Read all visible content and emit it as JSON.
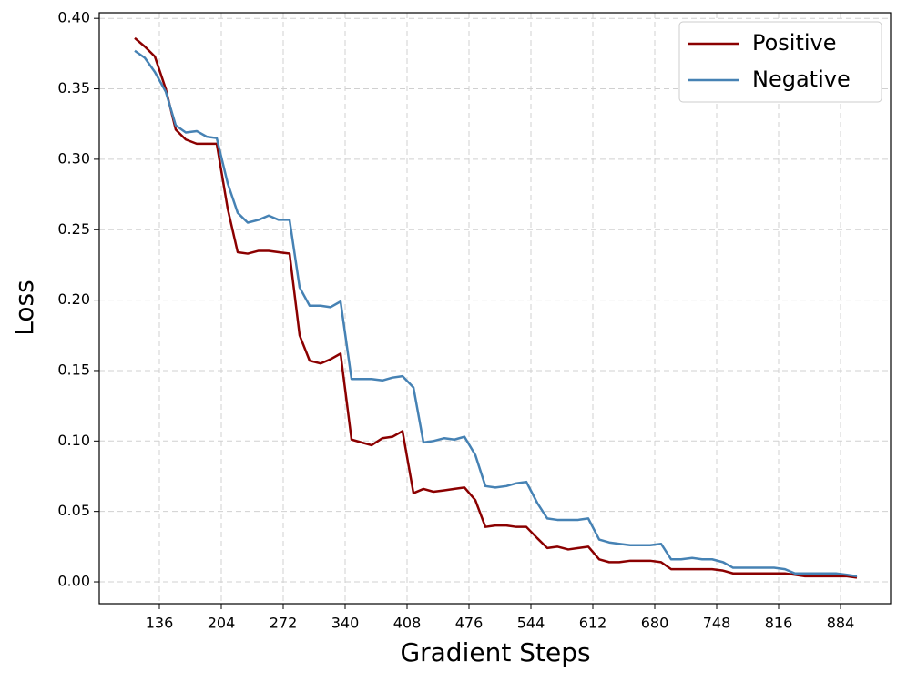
{
  "chart_data": {
    "type": "line",
    "x_label": "Gradient Steps",
    "y_label": "Loss",
    "x": [
      109,
      120,
      131,
      143,
      154,
      165,
      177,
      188,
      199,
      211,
      222,
      233,
      245,
      256,
      267,
      279,
      290,
      301,
      313,
      324,
      335,
      347,
      358,
      369,
      381,
      392,
      403,
      415,
      426,
      437,
      449,
      460,
      471,
      483,
      494,
      505,
      517,
      528,
      539,
      551,
      562,
      573,
      585,
      596,
      607,
      619,
      630,
      641,
      653,
      664,
      675,
      687,
      698,
      709,
      721,
      732,
      743,
      755,
      766,
      777,
      789,
      800,
      811,
      823,
      834,
      845,
      857,
      868,
      879,
      891,
      902
    ],
    "series": [
      {
        "name": "Positive",
        "color": "#8b0000",
        "values": [
          0.386,
          0.38,
          0.373,
          0.35,
          0.321,
          0.314,
          0.311,
          0.311,
          0.311,
          0.265,
          0.234,
          0.233,
          0.235,
          0.235,
          0.234,
          0.233,
          0.175,
          0.157,
          0.155,
          0.158,
          0.162,
          0.101,
          0.099,
          0.097,
          0.102,
          0.103,
          0.107,
          0.063,
          0.066,
          0.064,
          0.065,
          0.066,
          0.067,
          0.058,
          0.039,
          0.04,
          0.04,
          0.039,
          0.039,
          0.031,
          0.024,
          0.025,
          0.023,
          0.024,
          0.025,
          0.016,
          0.014,
          0.014,
          0.015,
          0.015,
          0.015,
          0.014,
          0.009,
          0.009,
          0.009,
          0.009,
          0.009,
          0.008,
          0.006,
          0.006,
          0.006,
          0.006,
          0.006,
          0.006,
          0.005,
          0.004,
          0.004,
          0.004,
          0.004,
          0.004,
          0.003
        ]
      },
      {
        "name": "Negative",
        "color": "#4682b4",
        "values": [
          0.377,
          0.372,
          0.362,
          0.348,
          0.324,
          0.319,
          0.32,
          0.316,
          0.315,
          0.283,
          0.262,
          0.255,
          0.257,
          0.26,
          0.257,
          0.257,
          0.209,
          0.196,
          0.196,
          0.195,
          0.199,
          0.144,
          0.144,
          0.144,
          0.143,
          0.145,
          0.146,
          0.138,
          0.099,
          0.1,
          0.102,
          0.101,
          0.103,
          0.09,
          0.068,
          0.067,
          0.068,
          0.07,
          0.071,
          0.056,
          0.045,
          0.044,
          0.044,
          0.044,
          0.045,
          0.03,
          0.028,
          0.027,
          0.026,
          0.026,
          0.026,
          0.027,
          0.016,
          0.016,
          0.017,
          0.016,
          0.016,
          0.014,
          0.01,
          0.01,
          0.01,
          0.01,
          0.01,
          0.009,
          0.006,
          0.006,
          0.006,
          0.006,
          0.006,
          0.005,
          0.004
        ]
      }
    ],
    "xlim": [
      70,
      939
    ],
    "ylim": [
      -0.0155,
      0.404
    ],
    "xticks": [
      136,
      204,
      272,
      340,
      408,
      476,
      544,
      612,
      680,
      748,
      816,
      884
    ],
    "yticks": [
      {
        "value": 0,
        "label": "0.00"
      },
      {
        "value": 0.05,
        "label": "0.05"
      },
      {
        "value": 0.1,
        "label": "0.10"
      },
      {
        "value": 0.15,
        "label": "0.15"
      },
      {
        "value": 0.2,
        "label": "0.20"
      },
      {
        "value": 0.25,
        "label": "0.25"
      },
      {
        "value": 0.3,
        "label": "0.30"
      },
      {
        "value": 0.35,
        "label": "0.35"
      },
      {
        "value": 0.4,
        "label": "0.40"
      }
    ],
    "grid": true,
    "legend": "upper right"
  }
}
